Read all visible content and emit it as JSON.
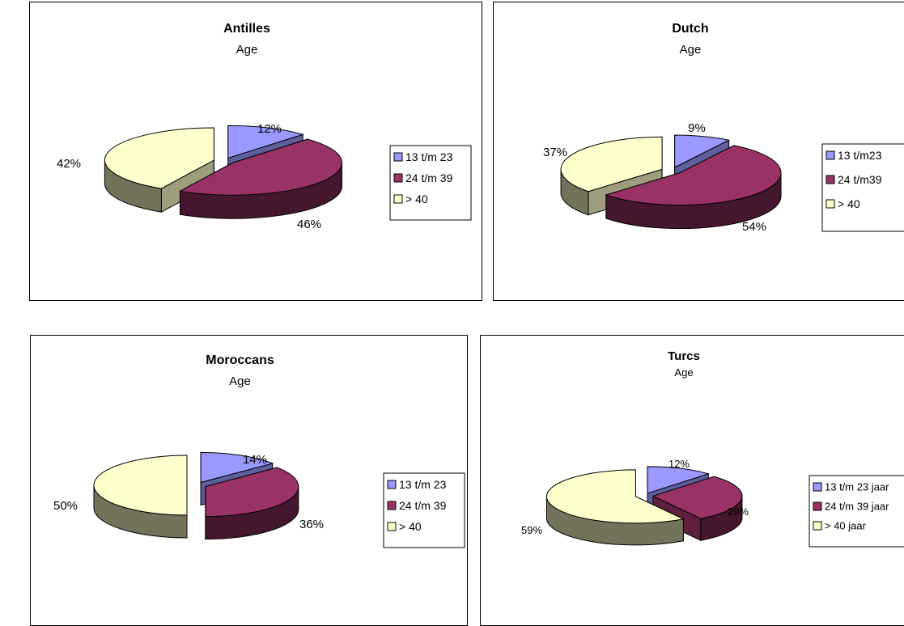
{
  "chart_data": [
    {
      "type": "pie",
      "title": "Antilles",
      "subtitle": "Age",
      "categories": [
        "13 t/m 23",
        "24 t/m 39",
        "> 40"
      ],
      "values": [
        12,
        46,
        42
      ],
      "data_labels": [
        "12%",
        "46%",
        "42%"
      ],
      "colors": [
        "#9999FF",
        "#993366",
        "#FFFFCC"
      ],
      "legend_position": "right",
      "exploded": true,
      "three_d": true
    },
    {
      "type": "pie",
      "title": "Dutch",
      "subtitle": "Age",
      "categories": [
        "13 t/m23",
        "24 t/m39",
        "> 40"
      ],
      "values": [
        9,
        54,
        37
      ],
      "data_labels": [
        "9%",
        "54%",
        "37%"
      ],
      "colors": [
        "#9999FF",
        "#993366",
        "#FFFFCC"
      ],
      "legend_position": "right",
      "exploded": true,
      "three_d": true
    },
    {
      "type": "pie",
      "title": "Moroccans",
      "subtitle": "Age",
      "categories": [
        "13 t/m 23",
        "24 t/m 39",
        "> 40"
      ],
      "values": [
        14,
        36,
        50
      ],
      "data_labels": [
        "14%",
        "36%",
        "50%"
      ],
      "colors": [
        "#9999FF",
        "#993366",
        "#FFFFCC"
      ],
      "legend_position": "right",
      "exploded": true,
      "three_d": true
    },
    {
      "type": "pie",
      "title": "Turcs",
      "subtitle": "Age",
      "categories": [
        "13 t/m 23 jaar",
        "24 t/m 39 jaar",
        "> 40 jaar"
      ],
      "values": [
        12,
        29,
        59
      ],
      "data_labels": [
        "12%",
        "29%",
        "59%"
      ],
      "colors": [
        "#9999FF",
        "#993366",
        "#FFFFCC"
      ],
      "legend_position": "right",
      "exploded": true,
      "three_d": true
    }
  ]
}
